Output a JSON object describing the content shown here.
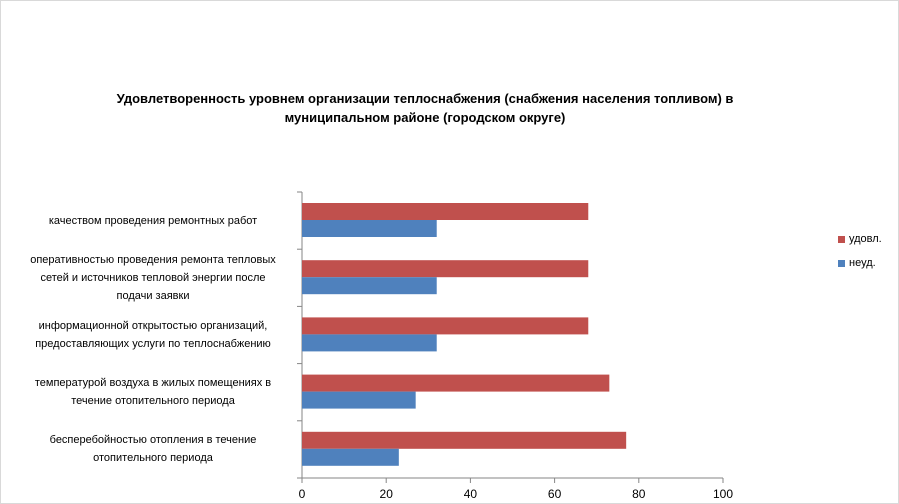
{
  "chart_data": {
    "type": "bar",
    "orientation": "horizontal",
    "title": "Удовлетворенность уровнем организации теплоснабжения (снабжения населения топливом) в муниципальном районе (городском округе)",
    "categories": [
      "бесперебойностью  отопления в течение отопительного периода",
      "температурой воздуха в жилых помещениях  в течение  отопительного периода",
      "информационной открытостью организаций, предоставляющих услуги по теплоснабжению",
      "оперативностью  проведения  ремонта тепловых сетей и источников тепловой энергии после подачи заявки",
      "качеством  проведения  ремонтных работ"
    ],
    "series": [
      {
        "name": "неуд.",
        "color": "#4f81bd",
        "values": [
          23,
          27,
          32,
          32,
          32
        ]
      },
      {
        "name": "удовл.",
        "color": "#c0504d",
        "values": [
          77,
          73,
          68,
          68,
          68
        ]
      }
    ],
    "xlim": [
      0,
      100
    ],
    "xticks": [
      "0",
      "20",
      "40",
      "60",
      "80",
      "100"
    ],
    "grid": false,
    "legend_position": "right"
  },
  "category_lines": [
    [
      "бесперебойностью  отопления в течение",
      "отопительного периода"
    ],
    [
      "температурой воздуха в жилых помещениях  в",
      "течение  отопительного периода"
    ],
    [
      "информационной открытостью организаций,",
      "предоставляющих услуги по теплоснабжению"
    ],
    [
      "оперативностью  проведения  ремонта тепловых",
      "сетей и источников тепловой энергии после",
      "подачи заявки"
    ],
    [
      "качеством  проведения  ремонтных работ"
    ]
  ]
}
